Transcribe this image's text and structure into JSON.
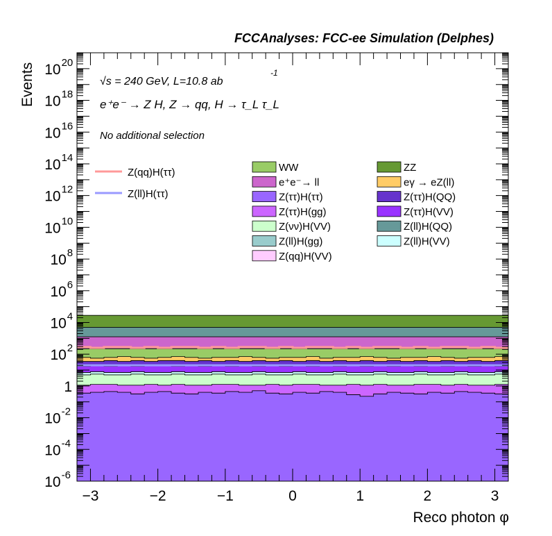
{
  "chart_data": {
    "type": "area",
    "title": "FCCAnalyses: FCC-ee Simulation (Delphes)",
    "xlabel": "Reco photon φ",
    "ylabel": "Events",
    "xlim": [
      -3.2,
      3.2
    ],
    "ylim_log10": [
      -6,
      21
    ],
    "y_scale": "log",
    "x_ticks": [
      -3,
      -2,
      -1,
      0,
      1,
      2,
      3
    ],
    "x_tick_labels": [
      "−3",
      "−2",
      "−1",
      "0",
      "1",
      "2",
      "3"
    ],
    "y_tick_exponents": [
      20,
      18,
      16,
      14,
      12,
      10,
      8,
      6,
      4,
      2,
      0,
      -2,
      -4,
      -6
    ],
    "y_tick_labels": [
      {
        "base": "10",
        "exp": "20"
      },
      {
        "base": "10",
        "exp": "18"
      },
      {
        "base": "10",
        "exp": "16"
      },
      {
        "base": "10",
        "exp": "14"
      },
      {
        "base": "10",
        "exp": "12"
      },
      {
        "base": "10",
        "exp": "10"
      },
      {
        "base": "10",
        "exp": "8"
      },
      {
        "base": "10",
        "exp": "6"
      },
      {
        "base": "10",
        "exp": "4"
      },
      {
        "base": "10",
        "exp": "2"
      },
      {
        "base": "1",
        "exp": ""
      },
      {
        "base": "10",
        "exp": "-2"
      },
      {
        "base": "10",
        "exp": "-4"
      },
      {
        "base": "10",
        "exp": "-6"
      }
    ],
    "annotations": {
      "line1": "√s = 240 GeV, L=10.8 ab",
      "line1_sup": "-1",
      "line2": "e⁺e⁻ → Z H, Z → qq, H → τ_L τ_L",
      "line3": "No additional selection"
    },
    "legend_signal": [
      {
        "label": "Z(qq)H(ττ)",
        "color": "#ff9999"
      },
      {
        "label": "Z(ll)H(ττ)",
        "color": "#9999ff"
      }
    ],
    "legend_background": [
      {
        "label": "WW",
        "color": "#99cc66"
      },
      {
        "label": "ZZ",
        "color": "#669933"
      },
      {
        "label": "e⁺e⁻→ ll",
        "color": "#cc66cc"
      },
      {
        "label": "eγ → eZ(ll)",
        "color": "#ffcc66"
      },
      {
        "label": "Z(ττ)H(ττ)",
        "color": "#9966ff"
      },
      {
        "label": "Z(ττ)H(QQ)",
        "color": "#6633cc"
      },
      {
        "label": "Z(ττ)H(gg)",
        "color": "#cc66ff"
      },
      {
        "label": "Z(ττ)H(VV)",
        "color": "#9933ff"
      },
      {
        "label": "Z(νν)H(VV)",
        "color": "#ccffcc"
      },
      {
        "label": "Z(ll)H(QQ)",
        "color": "#669999"
      },
      {
        "label": "Z(ll)H(gg)",
        "color": "#99cccc"
      },
      {
        "label": "Z(ll)H(VV)",
        "color": "#ccffff"
      },
      {
        "label": "Z(qq)H(VV)",
        "color": "#ffccff"
      }
    ],
    "stack_order_bottom_to_top": [
      "Z(ττ)H(ττ)",
      "Z(ττ)H(gg)",
      "Z(νν)H(VV)",
      "Z(ll)H(VV)",
      "Z(ττ)H(VV)",
      "Z(ττ)H(QQ)",
      "eγ → eZ(ll)",
      "WW",
      "e⁺e⁻→ ll",
      "Z(ll)H(QQ)",
      "ZZ"
    ],
    "n_bins": 32,
    "stack_tops_log10": {
      "Z(ττ)H(ττ)": [
        -0.45,
        -0.4,
        -0.35,
        -0.4,
        -0.5,
        -0.4,
        -0.35,
        -0.45,
        -0.5,
        -0.4,
        -0.45,
        -0.35,
        -0.4,
        -0.3,
        -0.45,
        -0.5,
        -0.4,
        -0.45,
        -0.35,
        -0.4,
        -0.55,
        -0.65,
        -0.5,
        -0.4,
        -0.45,
        -0.5,
        -0.4,
        -0.45,
        -0.35,
        -0.4,
        -0.45,
        -0.5
      ],
      "Z(ττ)H(gg)": [
        0.05,
        0.1,
        0.1,
        0.05,
        0.05,
        0.1,
        0.05,
        0.1,
        0.05,
        0.05,
        0.1,
        0.1,
        0.05,
        0.05,
        0.1,
        0.05,
        0.1,
        0.1,
        0.05,
        0.05,
        0.1,
        0.05,
        0.1,
        0.05,
        0.05,
        0.1,
        0.1,
        0.05,
        0.1,
        0.05,
        0.05,
        0.1
      ],
      "Z(νν)H(VV)": [
        0.7,
        0.75,
        0.7,
        0.7,
        0.75,
        0.7,
        0.7,
        0.75,
        0.7,
        0.7,
        0.75,
        0.7,
        0.7,
        0.75,
        0.7,
        0.7,
        0.75,
        0.7,
        0.7,
        0.75,
        0.7,
        0.7,
        0.75,
        0.7,
        0.7,
        0.75,
        0.7,
        0.7,
        0.75,
        0.7,
        0.7,
        0.75
      ],
      "Z(ll)H(VV)": [
        0.85,
        0.9,
        0.85,
        0.85,
        0.9,
        0.85,
        0.85,
        0.9,
        0.85,
        0.85,
        0.9,
        0.85,
        0.85,
        0.9,
        0.85,
        0.85,
        0.9,
        0.85,
        0.85,
        0.9,
        0.85,
        0.85,
        0.9,
        0.85,
        0.85,
        0.9,
        0.85,
        0.85,
        0.9,
        0.85,
        0.85,
        0.9
      ],
      "Z(ττ)H(VV)": [
        1.25,
        1.3,
        1.25,
        1.3,
        1.25,
        1.3,
        1.3,
        1.25,
        1.3,
        1.25,
        1.3,
        1.25,
        1.3,
        1.25,
        1.3,
        1.25,
        1.3,
        1.25,
        1.3,
        1.25,
        1.3,
        1.25,
        1.3,
        1.25,
        1.3,
        1.25,
        1.3,
        1.25,
        1.3,
        1.25,
        1.3,
        1.25
      ],
      "Z(ττ)H(QQ)": [
        1.55,
        1.55,
        1.6,
        1.55,
        1.6,
        1.55,
        1.6,
        1.6,
        1.55,
        1.6,
        1.55,
        1.6,
        1.55,
        1.6,
        1.55,
        1.6,
        1.55,
        1.6,
        1.55,
        1.6,
        1.55,
        1.6,
        1.55,
        1.6,
        1.55,
        1.6,
        1.55,
        1.6,
        1.55,
        1.6,
        1.55,
        1.6
      ],
      "eγ → eZ(ll)": [
        1.8,
        1.75,
        1.8,
        1.85,
        1.8,
        1.75,
        1.8,
        1.85,
        1.8,
        1.75,
        1.8,
        1.8,
        1.85,
        1.8,
        1.75,
        1.8,
        1.8,
        1.85,
        1.75,
        1.8,
        1.8,
        1.85,
        1.8,
        1.75,
        1.8,
        1.8,
        1.85,
        1.8,
        1.75,
        1.8,
        1.8,
        1.85
      ],
      "WW": [
        2.35,
        2.35,
        2.35,
        2.35,
        2.35,
        2.35,
        2.35,
        2.35,
        2.35,
        2.35,
        2.35,
        2.35,
        2.35,
        2.35,
        2.35,
        2.35,
        2.35,
        2.35,
        2.35,
        2.35,
        2.35,
        2.35,
        2.35,
        2.35,
        2.35,
        2.35,
        2.35,
        2.35,
        2.35,
        2.35,
        2.35,
        2.35
      ],
      "e⁺e⁻→ ll": [
        3.1,
        3.1,
        3.1,
        3.1,
        3.1,
        3.1,
        3.1,
        3.1,
        3.1,
        3.1,
        3.1,
        3.1,
        3.1,
        3.1,
        3.1,
        3.1,
        3.1,
        3.1,
        3.1,
        3.1,
        3.1,
        3.1,
        3.1,
        3.1,
        3.1,
        3.1,
        3.1,
        3.1,
        3.1,
        3.1,
        3.1,
        3.1
      ],
      "Z(ll)H(QQ)": [
        3.7,
        3.7,
        3.7,
        3.7,
        3.7,
        3.7,
        3.7,
        3.7,
        3.7,
        3.7,
        3.7,
        3.7,
        3.7,
        3.7,
        3.7,
        3.7,
        3.7,
        3.7,
        3.7,
        3.7,
        3.7,
        3.7,
        3.7,
        3.7,
        3.7,
        3.7,
        3.7,
        3.7,
        3.7,
        3.7,
        3.7,
        3.7
      ],
      "ZZ": [
        4.45,
        4.45,
        4.45,
        4.45,
        4.45,
        4.45,
        4.45,
        4.45,
        4.45,
        4.45,
        4.45,
        4.45,
        4.45,
        4.45,
        4.45,
        4.45,
        4.45,
        4.45,
        4.45,
        4.45,
        4.45,
        4.45,
        4.45,
        4.45,
        4.45,
        4.45,
        4.45,
        4.45,
        4.45,
        4.45,
        4.45,
        4.45
      ]
    },
    "signal_log10": {
      "Z(qq)H(ττ)": [
        2.45,
        2.4,
        2.45,
        2.45,
        2.4,
        2.45,
        2.4,
        2.45,
        2.45,
        2.4,
        2.45,
        2.4,
        2.45,
        2.45,
        2.4,
        2.45,
        2.4,
        2.45,
        2.45,
        2.4,
        2.45,
        2.4,
        2.45,
        2.45,
        2.4,
        2.45,
        2.4,
        2.45,
        2.45,
        2.4,
        2.45,
        2.4
      ],
      "Z(ll)H(ττ)": [
        1.3,
        1.3,
        1.3,
        1.3,
        1.3,
        1.3,
        1.3,
        1.3,
        1.3,
        1.3,
        1.3,
        1.3,
        1.3,
        1.3,
        1.3,
        1.3,
        1.3,
        1.3,
        1.3,
        1.3,
        1.3,
        1.3,
        1.3,
        1.3,
        1.3,
        1.3,
        1.3,
        1.3,
        1.3,
        1.3,
        1.3,
        1.3
      ]
    }
  }
}
